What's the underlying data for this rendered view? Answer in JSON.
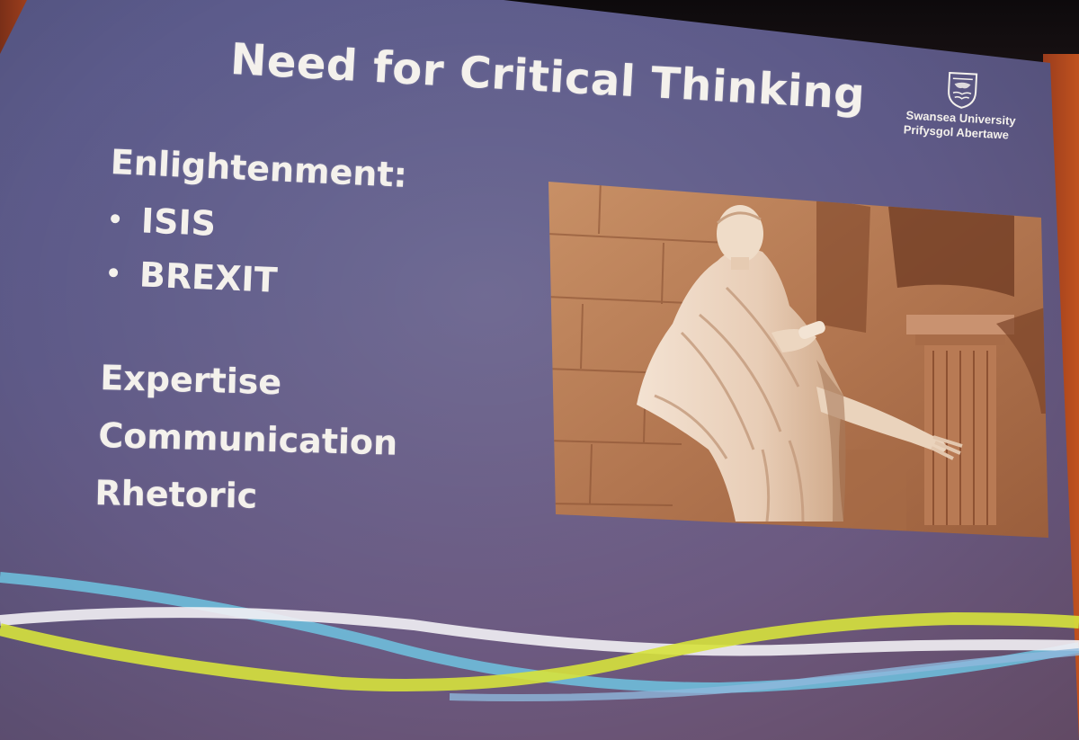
{
  "slide": {
    "title": "Need for Critical Thinking",
    "heading": "Enlightenment:",
    "bullets": [
      "ISIS",
      "BREXIT"
    ],
    "terms": [
      "Expertise",
      "Communication",
      "Rhetoric"
    ]
  },
  "logo": {
    "line1": "Swansea University",
    "line2": "Prifysgol Abertawe",
    "icon": "crest-icon"
  },
  "photo": {
    "subject": "marble statue of a toga-clad figure with outstretched arm",
    "icon": "statue-photo"
  },
  "colors": {
    "slide_background": "#5e5a88",
    "text": "#f4f1ec",
    "photo_tone": "#b0714a",
    "wave_cyan": "#6ec3e0",
    "wave_white": "#f2f0f4",
    "wave_yellow": "#d6e23c",
    "wall": "#a8431e"
  }
}
